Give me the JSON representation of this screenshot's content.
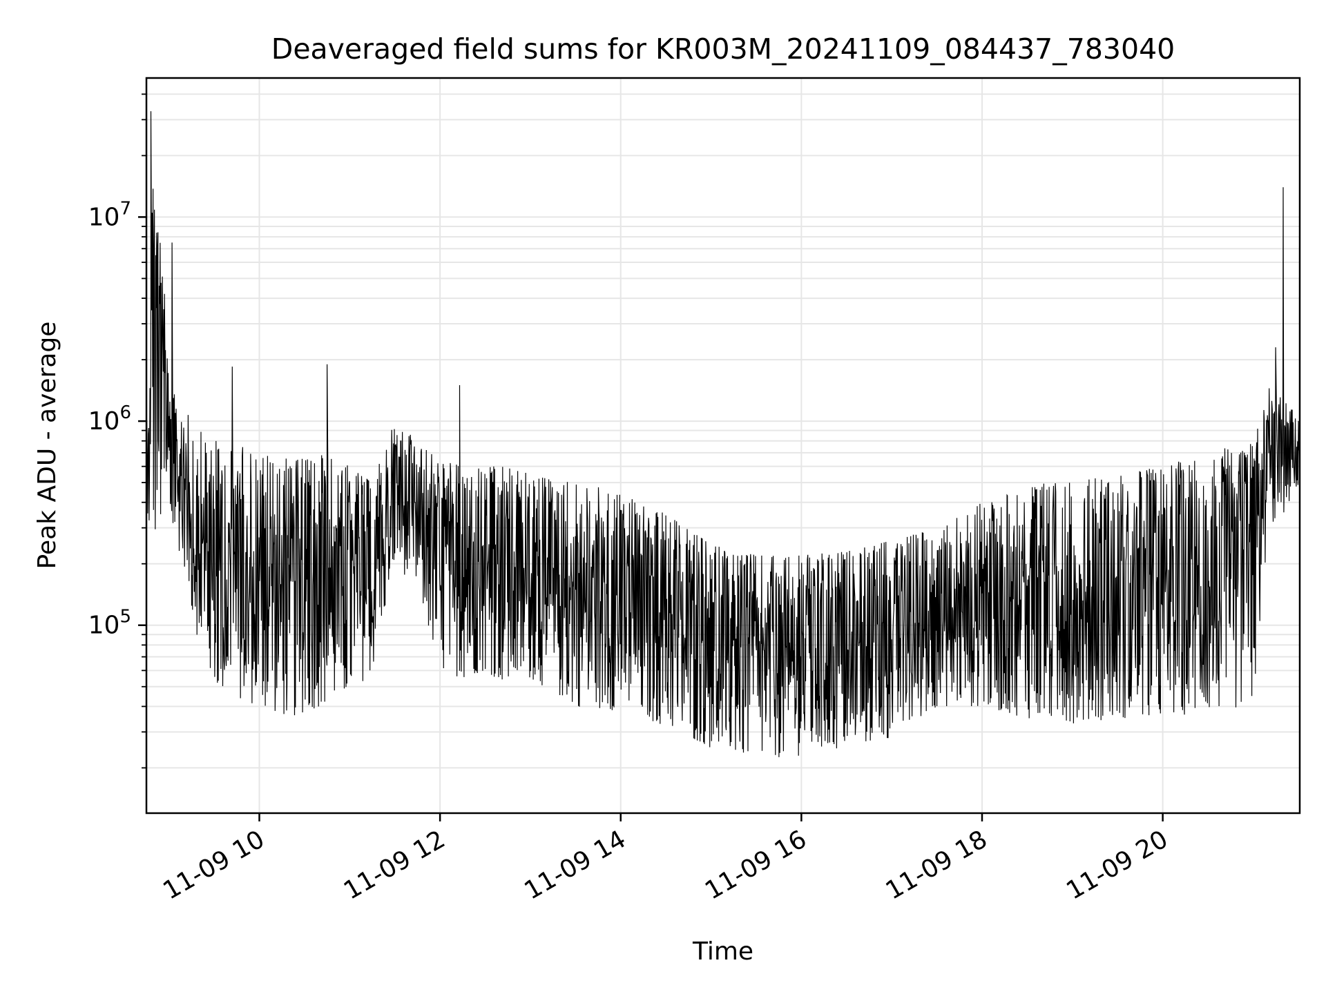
{
  "chart_data": {
    "type": "line",
    "title": "Deaveraged field sums for KR003M_20241109_084437_783040",
    "xlabel": "Time",
    "ylabel": "Peak ADU - average",
    "yscale": "log",
    "ylim": [
      12000,
      48000000
    ],
    "xlim": [
      "2024-11-09 08:45",
      "2024-11-09 21:31"
    ],
    "grid": true,
    "line_color": "#000000",
    "grid_color": "#e6e6e6",
    "x_ticks": [
      {
        "value": "2024-11-09 10:00",
        "label": "11-09 10"
      },
      {
        "value": "2024-11-09 12:00",
        "label": "11-09 12"
      },
      {
        "value": "2024-11-09 14:00",
        "label": "11-09 14"
      },
      {
        "value": "2024-11-09 16:00",
        "label": "11-09 16"
      },
      {
        "value": "2024-11-09 18:00",
        "label": "11-09 18"
      },
      {
        "value": "2024-11-09 20:00",
        "label": "11-09 20"
      }
    ],
    "y_ticks": [
      {
        "value": 100000,
        "base": "10",
        "exp": "5"
      },
      {
        "value": 1000000,
        "base": "10",
        "exp": "6"
      },
      {
        "value": 10000000,
        "base": "10",
        "exp": "7"
      }
    ],
    "series": [
      {
        "x": [
          "2024-11-09 08:45",
          "2024-11-09 08:50",
          "2024-11-09 08:55",
          "2024-11-09 09:00",
          "2024-11-09 09:05",
          "2024-11-09 09:10",
          "2024-11-09 09:15",
          "2024-11-09 09:20",
          "2024-11-09 09:30",
          "2024-11-09 09:40",
          "2024-11-09 10:00",
          "2024-11-09 10:20",
          "2024-11-09 10:40",
          "2024-11-09 11:00",
          "2024-11-09 11:15",
          "2024-11-09 11:30",
          "2024-11-09 11:45",
          "2024-11-09 12:00",
          "2024-11-09 12:15",
          "2024-11-09 12:30",
          "2024-11-09 12:45",
          "2024-11-09 13:00",
          "2024-11-09 13:30",
          "2024-11-09 14:00",
          "2024-11-09 14:30",
          "2024-11-09 15:00",
          "2024-11-09 15:30",
          "2024-11-09 16:00",
          "2024-11-09 16:30",
          "2024-11-09 17:00",
          "2024-11-09 17:30",
          "2024-11-09 18:00",
          "2024-11-09 18:30",
          "2024-11-09 19:00",
          "2024-11-09 19:30",
          "2024-11-09 20:00",
          "2024-11-09 20:30",
          "2024-11-09 21:00",
          "2024-11-09 21:10",
          "2024-11-09 21:20",
          "2024-11-09 21:31"
        ],
        "low": [
          300000,
          250000,
          300000,
          280000,
          250000,
          200000,
          120000,
          80000,
          50000,
          45000,
          40000,
          35000,
          40000,
          45000,
          60000,
          200000,
          150000,
          60000,
          55000,
          60000,
          50000,
          55000,
          40000,
          38000,
          32000,
          25000,
          22000,
          23000,
          25000,
          28000,
          40000,
          40000,
          35000,
          33000,
          35000,
          35000,
          38000,
          40000,
          300000,
          350000,
          500000
        ],
        "high": [
          1000000,
          30000000,
          7000000,
          1500000,
          1300000,
          1200000,
          1000000,
          900000,
          800000,
          800000,
          700000,
          650000,
          700000,
          600000,
          500000,
          1000000,
          800000,
          650000,
          600000,
          600000,
          600000,
          550000,
          500000,
          450000,
          350000,
          250000,
          220000,
          220000,
          230000,
          260000,
          300000,
          400000,
          500000,
          500000,
          550000,
          600000,
          700000,
          800000,
          1500000,
          1400000,
          1000000
        ],
        "spikes": [
          {
            "x": "2024-11-09 08:48",
            "y": 33000000
          },
          {
            "x": "2024-11-09 08:50",
            "y": 7000000
          },
          {
            "x": "2024-11-09 09:02",
            "y": 7500000
          },
          {
            "x": "2024-11-09 08:57",
            "y": 4200000
          },
          {
            "x": "2024-11-09 09:42",
            "y": 1850000
          },
          {
            "x": "2024-11-09 10:45",
            "y": 1900000
          },
          {
            "x": "2024-11-09 12:13",
            "y": 1500000
          },
          {
            "x": "2024-11-09 21:20",
            "y": 14000000
          },
          {
            "x": "2024-11-09 21:15",
            "y": 2300000
          }
        ]
      }
    ]
  }
}
